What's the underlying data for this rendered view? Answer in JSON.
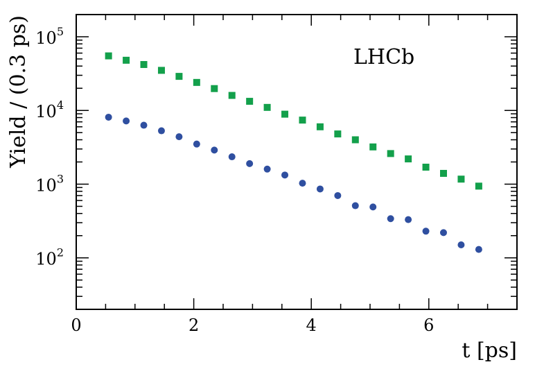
{
  "chart_data": {
    "type": "scatter",
    "title": "",
    "xlabel": "t [ps]",
    "ylabel": "Yield / (0.3 ps)",
    "annotation": "LHCb",
    "xlim": [
      0,
      7.5
    ],
    "ylim": [
      20,
      200000
    ],
    "yscale": "log",
    "grid": false,
    "legend": "none",
    "x_ticks": [
      {
        "value": 0,
        "label": "0"
      },
      {
        "value": 2,
        "label": "2"
      },
      {
        "value": 4,
        "label": "4"
      },
      {
        "value": 6,
        "label": "6"
      }
    ],
    "y_ticks": [
      {
        "value": 100,
        "base": "10",
        "exp": "2"
      },
      {
        "value": 1000,
        "base": "10",
        "exp": "3"
      },
      {
        "value": 10000,
        "base": "10",
        "exp": "4"
      },
      {
        "value": 100000,
        "base": "10",
        "exp": "5"
      }
    ],
    "series": [
      {
        "marker": "square",
        "color": "#13a04b",
        "x": [
          0.55,
          0.85,
          1.15,
          1.45,
          1.75,
          2.05,
          2.35,
          2.65,
          2.95,
          3.25,
          3.55,
          3.85,
          4.15,
          4.45,
          4.75,
          5.05,
          5.35,
          5.65,
          5.95,
          6.25,
          6.55,
          6.85
        ],
        "y": [
          55000,
          48000,
          42000,
          35000,
          29000,
          24000,
          19800,
          16000,
          13300,
          11000,
          8900,
          7400,
          6000,
          4800,
          4000,
          3200,
          2600,
          2200,
          1700,
          1400,
          1170,
          940
        ]
      },
      {
        "marker": "circle",
        "color": "#2f4fa0",
        "x": [
          0.55,
          0.85,
          1.15,
          1.45,
          1.75,
          2.05,
          2.35,
          2.65,
          2.95,
          3.25,
          3.55,
          3.85,
          4.15,
          4.45,
          4.75,
          5.05,
          5.35,
          5.65,
          5.95,
          6.25,
          6.55,
          6.85
        ],
        "y": [
          8100,
          7200,
          6300,
          5300,
          4400,
          3500,
          2900,
          2350,
          1900,
          1600,
          1330,
          1030,
          860,
          700,
          510,
          490,
          340,
          330,
          230,
          220,
          150,
          130
        ]
      }
    ]
  }
}
